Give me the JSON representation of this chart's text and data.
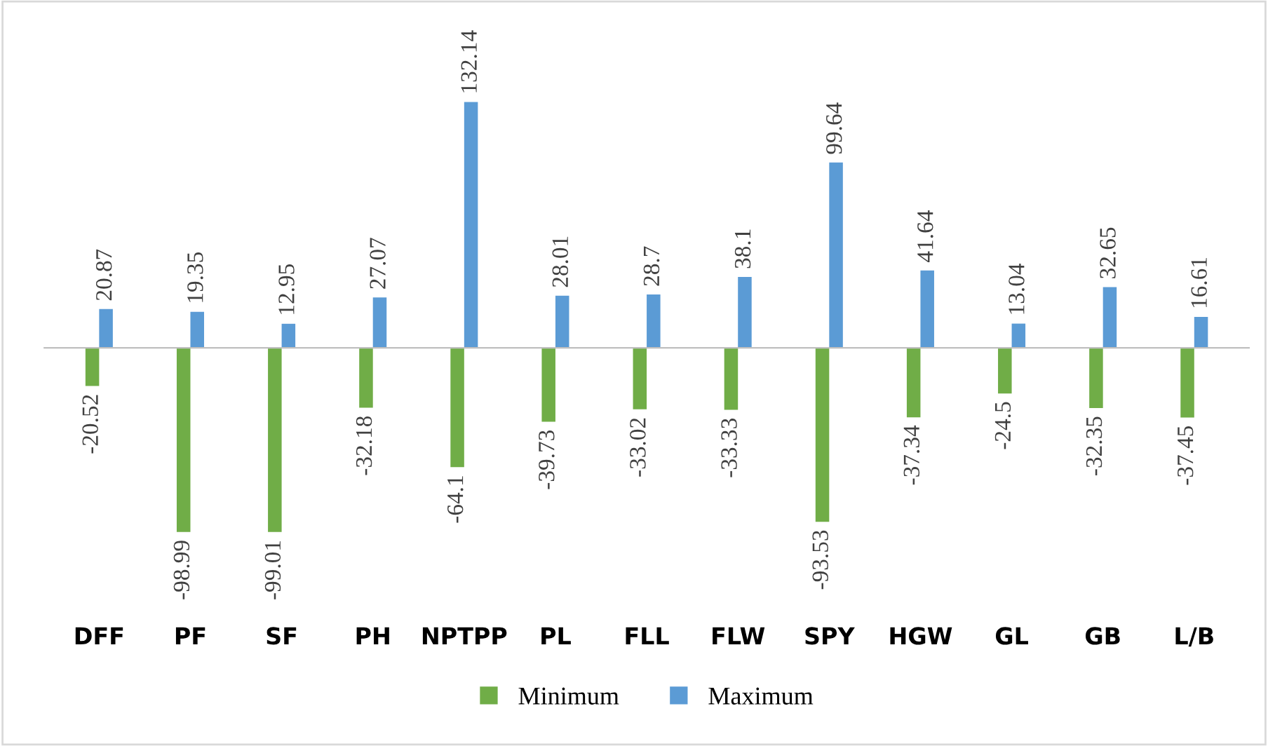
{
  "chart_data": {
    "type": "bar",
    "categories": [
      "DFF",
      "PF",
      "SF",
      "PH",
      "NPTPP",
      "PL",
      "FLL",
      "FLW",
      "SPY",
      "HGW",
      "GL",
      "GB",
      "L/B"
    ],
    "series": [
      {
        "name": "Minimum",
        "color": "#70ad47",
        "values": [
          -20.52,
          -98.99,
          -99.01,
          -32.18,
          -64.1,
          -39.73,
          -33.02,
          -33.33,
          -93.53,
          -37.34,
          -24.5,
          -32.35,
          -37.45
        ]
      },
      {
        "name": "Maximum",
        "color": "#5b9bd5",
        "values": [
          20.87,
          19.35,
          12.95,
          27.07,
          132.14,
          28.01,
          28.7,
          38.1,
          99.64,
          41.64,
          13.04,
          32.65,
          16.61
        ]
      }
    ],
    "data_labels": true,
    "legend": "bottom"
  }
}
